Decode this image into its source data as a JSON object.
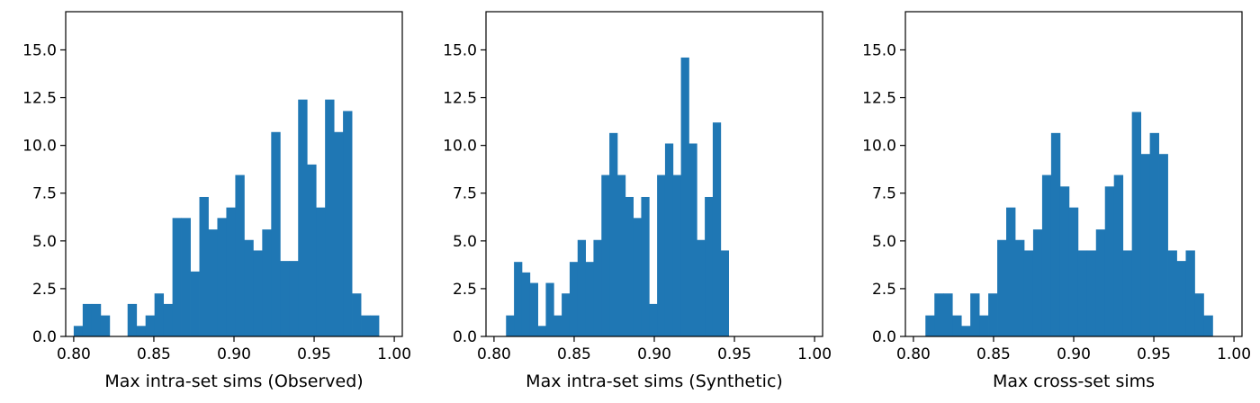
{
  "colors": {
    "bar": "#1f77b4",
    "axes": "#000000",
    "background": "#ffffff"
  },
  "chart_data": [
    {
      "type": "histogram",
      "xlabel": "Max intra-set sims (Observed)",
      "ylabel": "",
      "xlim": [
        0.795,
        1.005
      ],
      "ylim": [
        0,
        17.0
      ],
      "xticks": [
        "0.80",
        "0.85",
        "0.90",
        "0.95",
        "1.00"
      ],
      "yticks": [
        "0.0",
        "2.5",
        "5.0",
        "7.5",
        "10.0",
        "12.5",
        "15.0"
      ],
      "bin_start": 0.8,
      "bin_width": 0.0056,
      "values": [
        0.55,
        1.7,
        1.7,
        1.1,
        0,
        0,
        1.7,
        0.55,
        1.1,
        2.25,
        1.7,
        6.2,
        6.2,
        3.4,
        7.3,
        5.6,
        6.2,
        6.75,
        8.45,
        5.05,
        4.5,
        5.6,
        10.7,
        3.95,
        3.95,
        12.4,
        9.0,
        6.75,
        12.4,
        10.7,
        11.8,
        2.25,
        1.1,
        1.1
      ]
    },
    {
      "type": "histogram",
      "xlabel": "Max intra-set sims (Synthetic)",
      "ylabel": "",
      "xlim": [
        0.795,
        1.005
      ],
      "ylim": [
        0,
        17.0
      ],
      "xticks": [
        "0.80",
        "0.85",
        "0.90",
        "0.95",
        "1.00"
      ],
      "yticks": [
        "0.0",
        "2.5",
        "5.0",
        "7.5",
        "10.0",
        "12.5",
        "15.0"
      ],
      "bin_start": 0.8075,
      "bin_width": 0.00496,
      "values": [
        1.1,
        3.9,
        3.35,
        2.8,
        0.55,
        2.8,
        1.1,
        2.25,
        3.9,
        5.05,
        3.9,
        5.05,
        8.45,
        10.65,
        8.45,
        7.3,
        6.2,
        7.3,
        1.7,
        8.45,
        10.1,
        8.45,
        14.6,
        10.1,
        5.05,
        7.3,
        11.2,
        4.5
      ]
    },
    {
      "type": "histogram",
      "xlabel": "Max cross-set sims",
      "ylabel": "",
      "xlim": [
        0.795,
        1.005
      ],
      "ylim": [
        0,
        17.0
      ],
      "xticks": [
        "0.80",
        "0.85",
        "0.90",
        "0.95",
        "1.00"
      ],
      "yticks": [
        "0.0",
        "2.5",
        "5.0",
        "7.5",
        "10.0",
        "12.5",
        "15.0"
      ],
      "bin_start": 0.8075,
      "bin_width": 0.0056,
      "values": [
        1.1,
        2.25,
        2.25,
        1.1,
        0.55,
        2.25,
        1.1,
        2.25,
        5.05,
        6.75,
        5.05,
        4.5,
        5.6,
        8.45,
        10.65,
        7.85,
        6.75,
        4.5,
        4.5,
        5.6,
        7.85,
        8.45,
        4.5,
        11.75,
        9.55,
        10.65,
        9.55,
        4.5,
        3.95,
        4.5,
        2.25,
        1.1
      ]
    }
  ]
}
